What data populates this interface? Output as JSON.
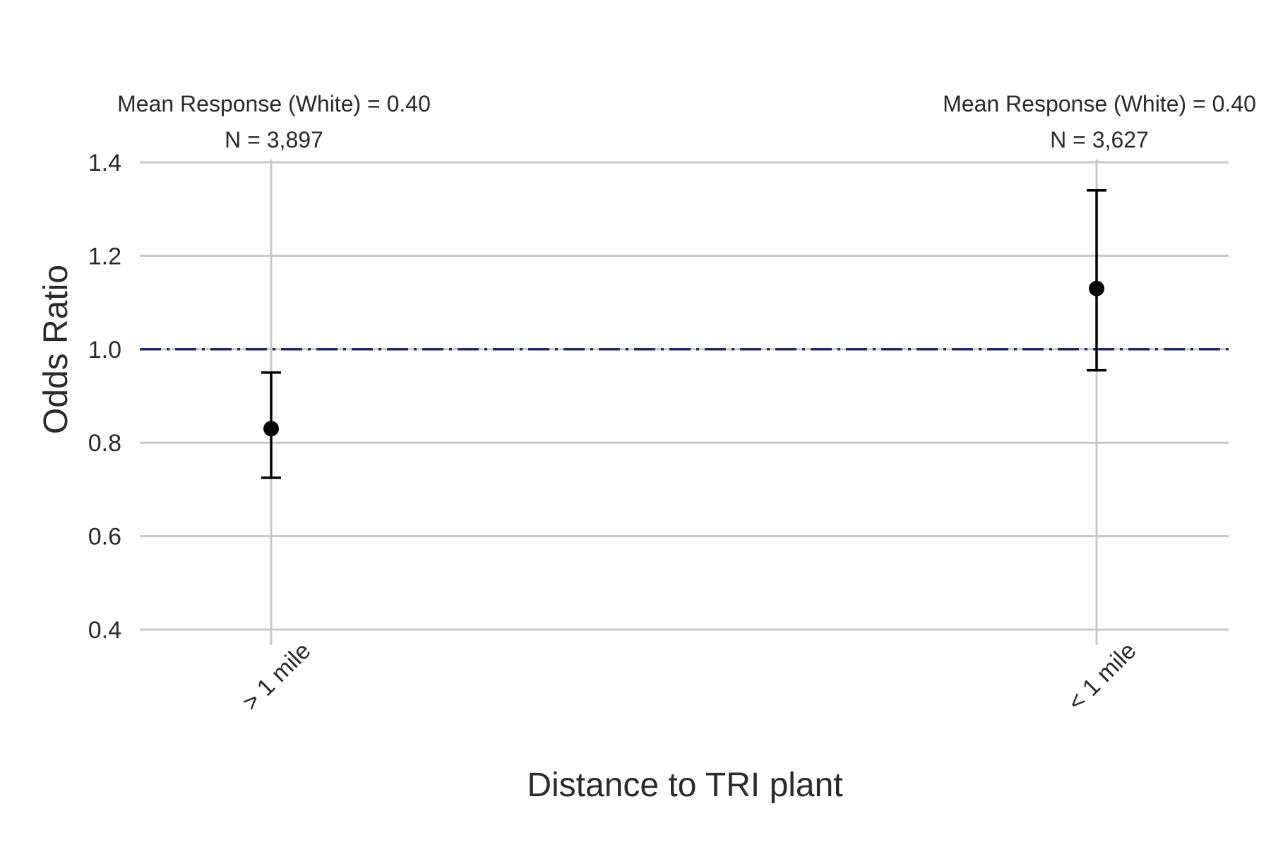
{
  "chart_data": {
    "type": "scatter",
    "xlabel": "Distance to TRI plant",
    "ylabel": "Odds Ratio",
    "ylim": [
      0.4,
      1.4
    ],
    "yticks": [
      "0.4",
      "0.6",
      "0.8",
      "1.0",
      "1.2",
      "1.4"
    ],
    "reference_line": {
      "y": 1.0,
      "style": "dash-dot",
      "color": "#1f2a6b"
    },
    "grid": true,
    "categories": [
      "> 1 mile",
      "< 1 mile"
    ],
    "points": [
      {
        "category": "> 1 mile",
        "estimate": 0.83,
        "lower": 0.725,
        "upper": 0.95,
        "mean_label": "Mean Response (White) = 0.40",
        "n_label": "N = 3,897"
      },
      {
        "category": "< 1 mile",
        "estimate": 1.13,
        "lower": 0.955,
        "upper": 1.34,
        "mean_label": "Mean Response (White) = 0.40",
        "n_label": "N = 3,627"
      }
    ]
  }
}
